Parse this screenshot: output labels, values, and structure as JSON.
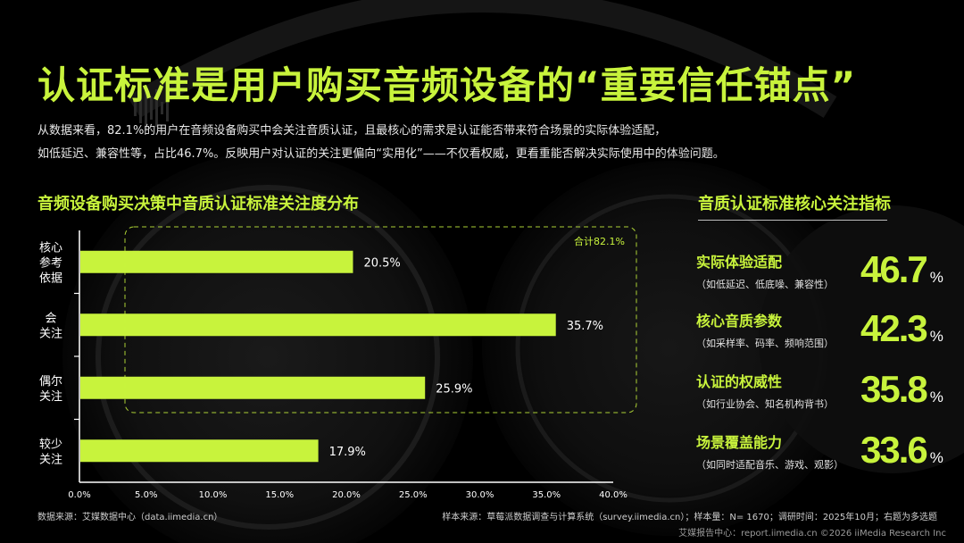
{
  "title": "认证标准是用户购买音频设备的“重要信任锚点”",
  "description": [
    "从数据来看，82.1%的用户在音频设备购买中会关注音质认证，且最核心的需求是认证能否带来符合场景的实际体验适配，",
    "如低延迟、兼容性等，占比46.7%。反映用户对认证的关注更偏向“实用化”——不仅看权威，更看重能否解决实际使用中的体验问题。"
  ],
  "colors": {
    "accent": "#c8f33c",
    "background": "#000000",
    "text": "#ffffff"
  },
  "chart_data": {
    "type": "bar",
    "orientation": "horizontal",
    "title": "音频设备购买决策中音质认证标准关注度分布",
    "categories": [
      "核心参考依据",
      "会关注",
      "偶尔关注",
      "较少关注"
    ],
    "category_lines": [
      [
        "核心",
        "参考",
        "依据"
      ],
      [
        "会",
        "关注"
      ],
      [
        "偶尔",
        "关注"
      ],
      [
        "较少",
        "关注"
      ]
    ],
    "values": [
      20.5,
      35.7,
      25.9,
      17.9
    ],
    "value_labels": [
      "20.5%",
      "35.7%",
      "25.9%",
      "17.9%"
    ],
    "xlim": [
      0,
      40
    ],
    "x_ticks": [
      0,
      5,
      10,
      15,
      20,
      25,
      30,
      35,
      40
    ],
    "x_tick_labels": [
      "0.0%",
      "5.0%",
      "10.0%",
      "15.0%",
      "20.0%",
      "25.0%",
      "30.0%",
      "35.0%",
      "40.0%"
    ],
    "grid": false,
    "annotation": "合计82.1%"
  },
  "metrics_panel": {
    "title": "音质认证标准核心关注指标",
    "items": [
      {
        "name": "实际体验适配",
        "sub": "（如低延迟、低底噪、兼容性）",
        "value": "46.7",
        "unit": "%"
      },
      {
        "name": "核心音质参数",
        "sub": "（如采样率、码率、频响范围）",
        "value": "42.3",
        "unit": "%"
      },
      {
        "name": "认证的权威性",
        "sub": "（如行业协会、知名机构背书）",
        "value": "35.8",
        "unit": "%"
      },
      {
        "name": "场景覆盖能力",
        "sub": "（如同时适配音乐、游戏、观影）",
        "value": "33.6",
        "unit": "%"
      }
    ]
  },
  "footer": {
    "source_left": "数据来源：艾媒数据中心（data.iimedia.cn）",
    "source_right": "样本来源：草莓派数据调查与计算系统（survey.iimedia.cn）；样本量：N= 1670；调研时间：2025年10月；右题为多选题",
    "brand": "艾媒报告中心：report.iimedia.cn  ©2026  iiMedia Research  Inc"
  }
}
